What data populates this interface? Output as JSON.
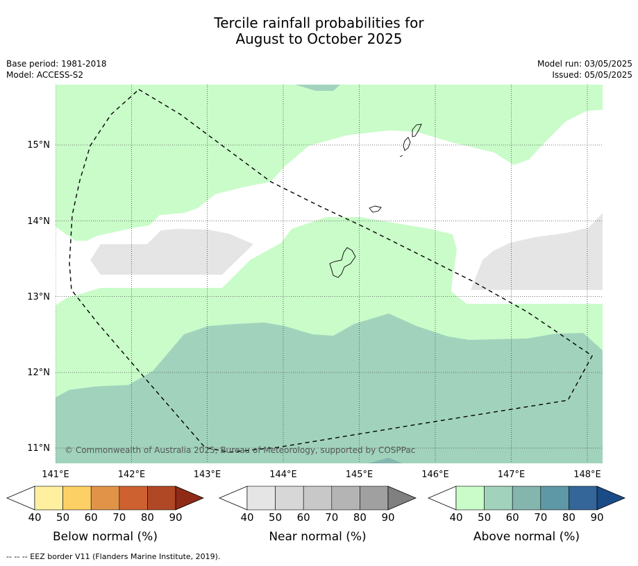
{
  "title": {
    "line1": "Tercile rainfall probabilities for",
    "line2": "August to October 2025"
  },
  "meta_left": {
    "base_period": "Base period: 1981-2018",
    "model": "Model: ACCESS-S2"
  },
  "meta_right": {
    "model_run": "Model run: 03/05/2025",
    "issued": "Issued: 05/05/2025"
  },
  "map": {
    "lon_labels": [
      "141°E",
      "142°E",
      "143°E",
      "144°E",
      "145°E",
      "146°E",
      "147°E",
      "148°E"
    ],
    "lat_labels": [
      "15°N",
      "14°N",
      "13°N",
      "12°N",
      "11°N"
    ],
    "copyright": "© Commonwealth of Australia 2025, Bureau of Meteorology, supported by COSPPac",
    "gridlines": "dotted",
    "regions": [
      {
        "category": "above normal",
        "probability_bin": "40-50",
        "color": "#c9fcc9"
      },
      {
        "category": "above normal",
        "probability_bin": "50-60",
        "color": "#a1d3bc"
      },
      {
        "category": "near normal",
        "probability_bin": "40-50",
        "color": "#e5e5e5"
      },
      {
        "category": "no dominant tercile",
        "color": "#ffffff"
      }
    ],
    "eez_border_style": "dashed"
  },
  "colorbars": [
    {
      "label": "Below normal (%)",
      "ticks": [
        "40",
        "50",
        "60",
        "70",
        "80",
        "90"
      ],
      "colors": [
        "#fff0a0",
        "#fdd066",
        "#e19448",
        "#ce6130",
        "#b04825",
        "#8e2a16"
      ]
    },
    {
      "label": "Near normal (%)",
      "ticks": [
        "40",
        "50",
        "60",
        "70",
        "80",
        "90"
      ],
      "colors": [
        "#e5e5e5",
        "#d7d7d7",
        "#c8c8c8",
        "#b4b4b4",
        "#a0a0a0",
        "#808080"
      ]
    },
    {
      "label": "Above normal (%)",
      "ticks": [
        "40",
        "50",
        "60",
        "70",
        "80",
        "90"
      ],
      "colors": [
        "#c9fcc9",
        "#a1d3bc",
        "#85b6ae",
        "#5e97a6",
        "#346699",
        "#1a4b86"
      ]
    }
  ],
  "footer": "--  --  -- EEZ border V11 (Flanders Marine Institute, 2019)."
}
